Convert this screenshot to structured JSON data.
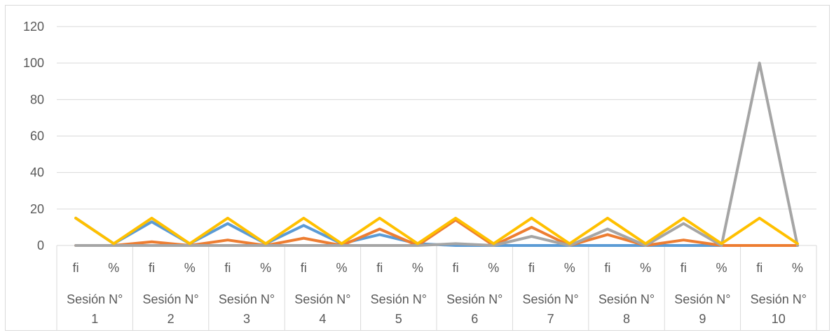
{
  "chart_data": {
    "type": "line",
    "title": "",
    "xlabel": "",
    "ylabel": "",
    "ylim": [
      0,
      120
    ],
    "yticks": [
      "0",
      "20",
      "40",
      "60",
      "80",
      "100",
      "120"
    ],
    "grid": true,
    "legend": "none",
    "groups": [
      "Sesión N° 1",
      "Sesión N° 2",
      "Sesión N° 3",
      "Sesión N° 4",
      "Sesión N° 5",
      "Sesión N° 6",
      "Sesión N° 7",
      "Sesión N° 8",
      "Sesión N° 9",
      "Sesión N° 10"
    ],
    "group_label_lines": [
      [
        "Sesión N°",
        "1"
      ],
      [
        "Sesión N°",
        "2"
      ],
      [
        "Sesión N°",
        "3"
      ],
      [
        "Sesión N°",
        "4"
      ],
      [
        "Sesión N°",
        "5"
      ],
      [
        "Sesión N°",
        "6"
      ],
      [
        "Sesión N°",
        "7"
      ],
      [
        "Sesión N°",
        "8"
      ],
      [
        "Sesión N°",
        "9"
      ],
      [
        "Sesión N°",
        "10"
      ]
    ],
    "categories": [
      "fi",
      "%",
      "fi",
      "%",
      "fi",
      "%",
      "fi",
      "%",
      "fi",
      "%",
      "fi",
      "%",
      "fi",
      "%",
      "fi",
      "%",
      "fi",
      "%",
      "fi",
      "%"
    ],
    "series": [
      {
        "color": "#5b9bd5",
        "values": [
          15,
          1,
          13,
          1,
          12,
          1,
          11,
          1,
          6,
          1,
          0,
          0,
          0,
          0,
          0,
          0,
          0,
          0,
          0,
          0
        ]
      },
      {
        "color": "#ed7d31",
        "values": [
          0,
          0,
          2,
          0,
          3,
          0,
          4,
          0,
          9,
          0,
          14,
          0,
          10,
          0,
          6,
          0,
          3,
          0,
          0,
          0
        ]
      },
      {
        "color": "#a5a5a5",
        "values": [
          0,
          0,
          0,
          0,
          0,
          0,
          0,
          0,
          0,
          0,
          1,
          0,
          5,
          0,
          9,
          0,
          12,
          0,
          100,
          0
        ]
      },
      {
        "color": "#ffc000",
        "values": [
          15,
          1,
          15,
          1,
          15,
          1,
          15,
          1,
          15,
          1,
          15,
          1,
          15,
          1,
          15,
          1,
          15,
          1,
          15,
          1
        ]
      }
    ]
  }
}
